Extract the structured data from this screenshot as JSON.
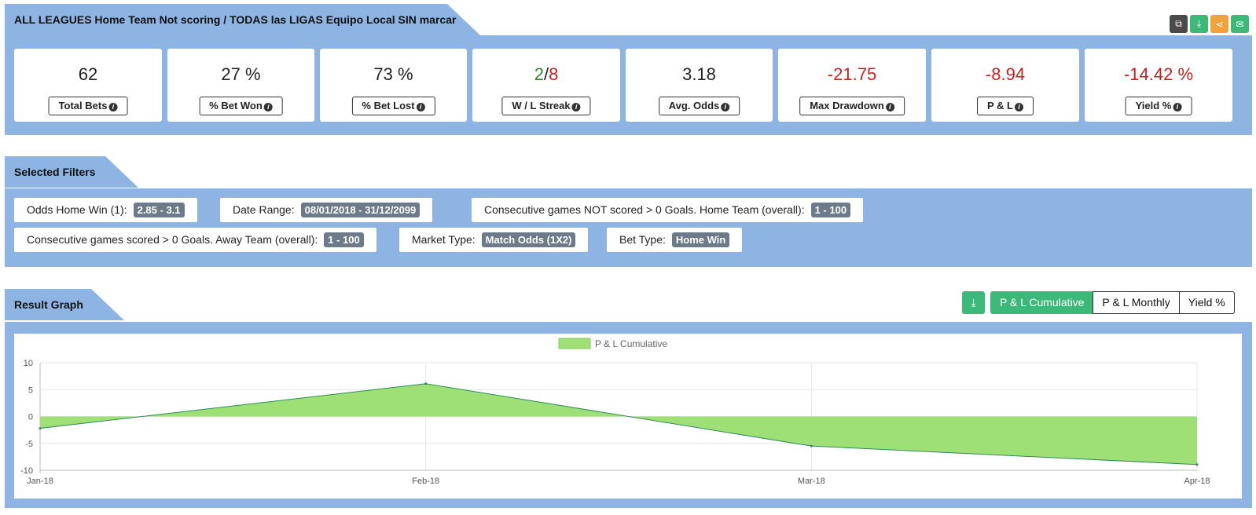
{
  "header": {
    "title": "ALL LEAGUES Home Team Not scoring / TODAS las LIGAS Equipo Local SIN marcar",
    "icons": [
      {
        "name": "copy-icon",
        "glyph": "⧉",
        "color": "#4a4a4a"
      },
      {
        "name": "download-icon",
        "glyph": "⤓",
        "color": "#3cb878"
      },
      {
        "name": "share-icon",
        "glyph": "⋖",
        "color": "#f0a33a"
      },
      {
        "name": "email-icon",
        "glyph": "✉",
        "color": "#3cb878"
      }
    ]
  },
  "stats": [
    {
      "value": "62",
      "label": "Total Bets"
    },
    {
      "value": "27 %",
      "label": "% Bet Won"
    },
    {
      "value": "73 %",
      "label": "% Bet Lost"
    },
    {
      "value_win": "2",
      "value_sep": "/",
      "value_loss": "8",
      "label": "W / L Streak"
    },
    {
      "value": "3.18",
      "label": "Avg. Odds"
    },
    {
      "value": "-21.75",
      "label": "Max Drawdown"
    },
    {
      "value": "-8.94",
      "label": "P & L"
    },
    {
      "value": "-14.42 %",
      "label": "Yield %"
    }
  ],
  "filters_section": {
    "title": "Selected Filters",
    "filters": [
      {
        "label": "Odds Home Win (1):",
        "value": "2.85 - 3.1"
      },
      {
        "label": "Date Range:",
        "value": "08/01/2018 - 31/12/2099"
      },
      {
        "label": "Consecutive games NOT scored > 0 Goals. Home Team (overall):",
        "value": "1 - 100"
      },
      {
        "label": "Consecutive games scored > 0 Goals. Away Team (overall):",
        "value": "1 - 100"
      },
      {
        "label": "Market Type:",
        "value": "Match Odds (1X2)"
      },
      {
        "label": "Bet Type:",
        "value": "Home Win"
      }
    ]
  },
  "graph_section": {
    "title": "Result Graph",
    "tabs": [
      "P & L Cumulative",
      "P & L Monthly",
      "Yield %"
    ],
    "active_tab": "P & L Cumulative"
  },
  "chart_data": {
    "type": "area",
    "x": [
      "Jan-18",
      "Feb-18",
      "Mar-18",
      "Apr-18"
    ],
    "series": [
      {
        "name": "P & L Cumulative",
        "values": [
          -2.2,
          6.1,
          -5.5,
          -8.94
        ],
        "color": "#9fe076",
        "line_color": "#2e8b57"
      }
    ],
    "ylim": [
      -10,
      10
    ],
    "yticks": [
      "10",
      "5",
      "0",
      "-5",
      "-10"
    ],
    "grid": true,
    "legend_position": "top-center"
  }
}
